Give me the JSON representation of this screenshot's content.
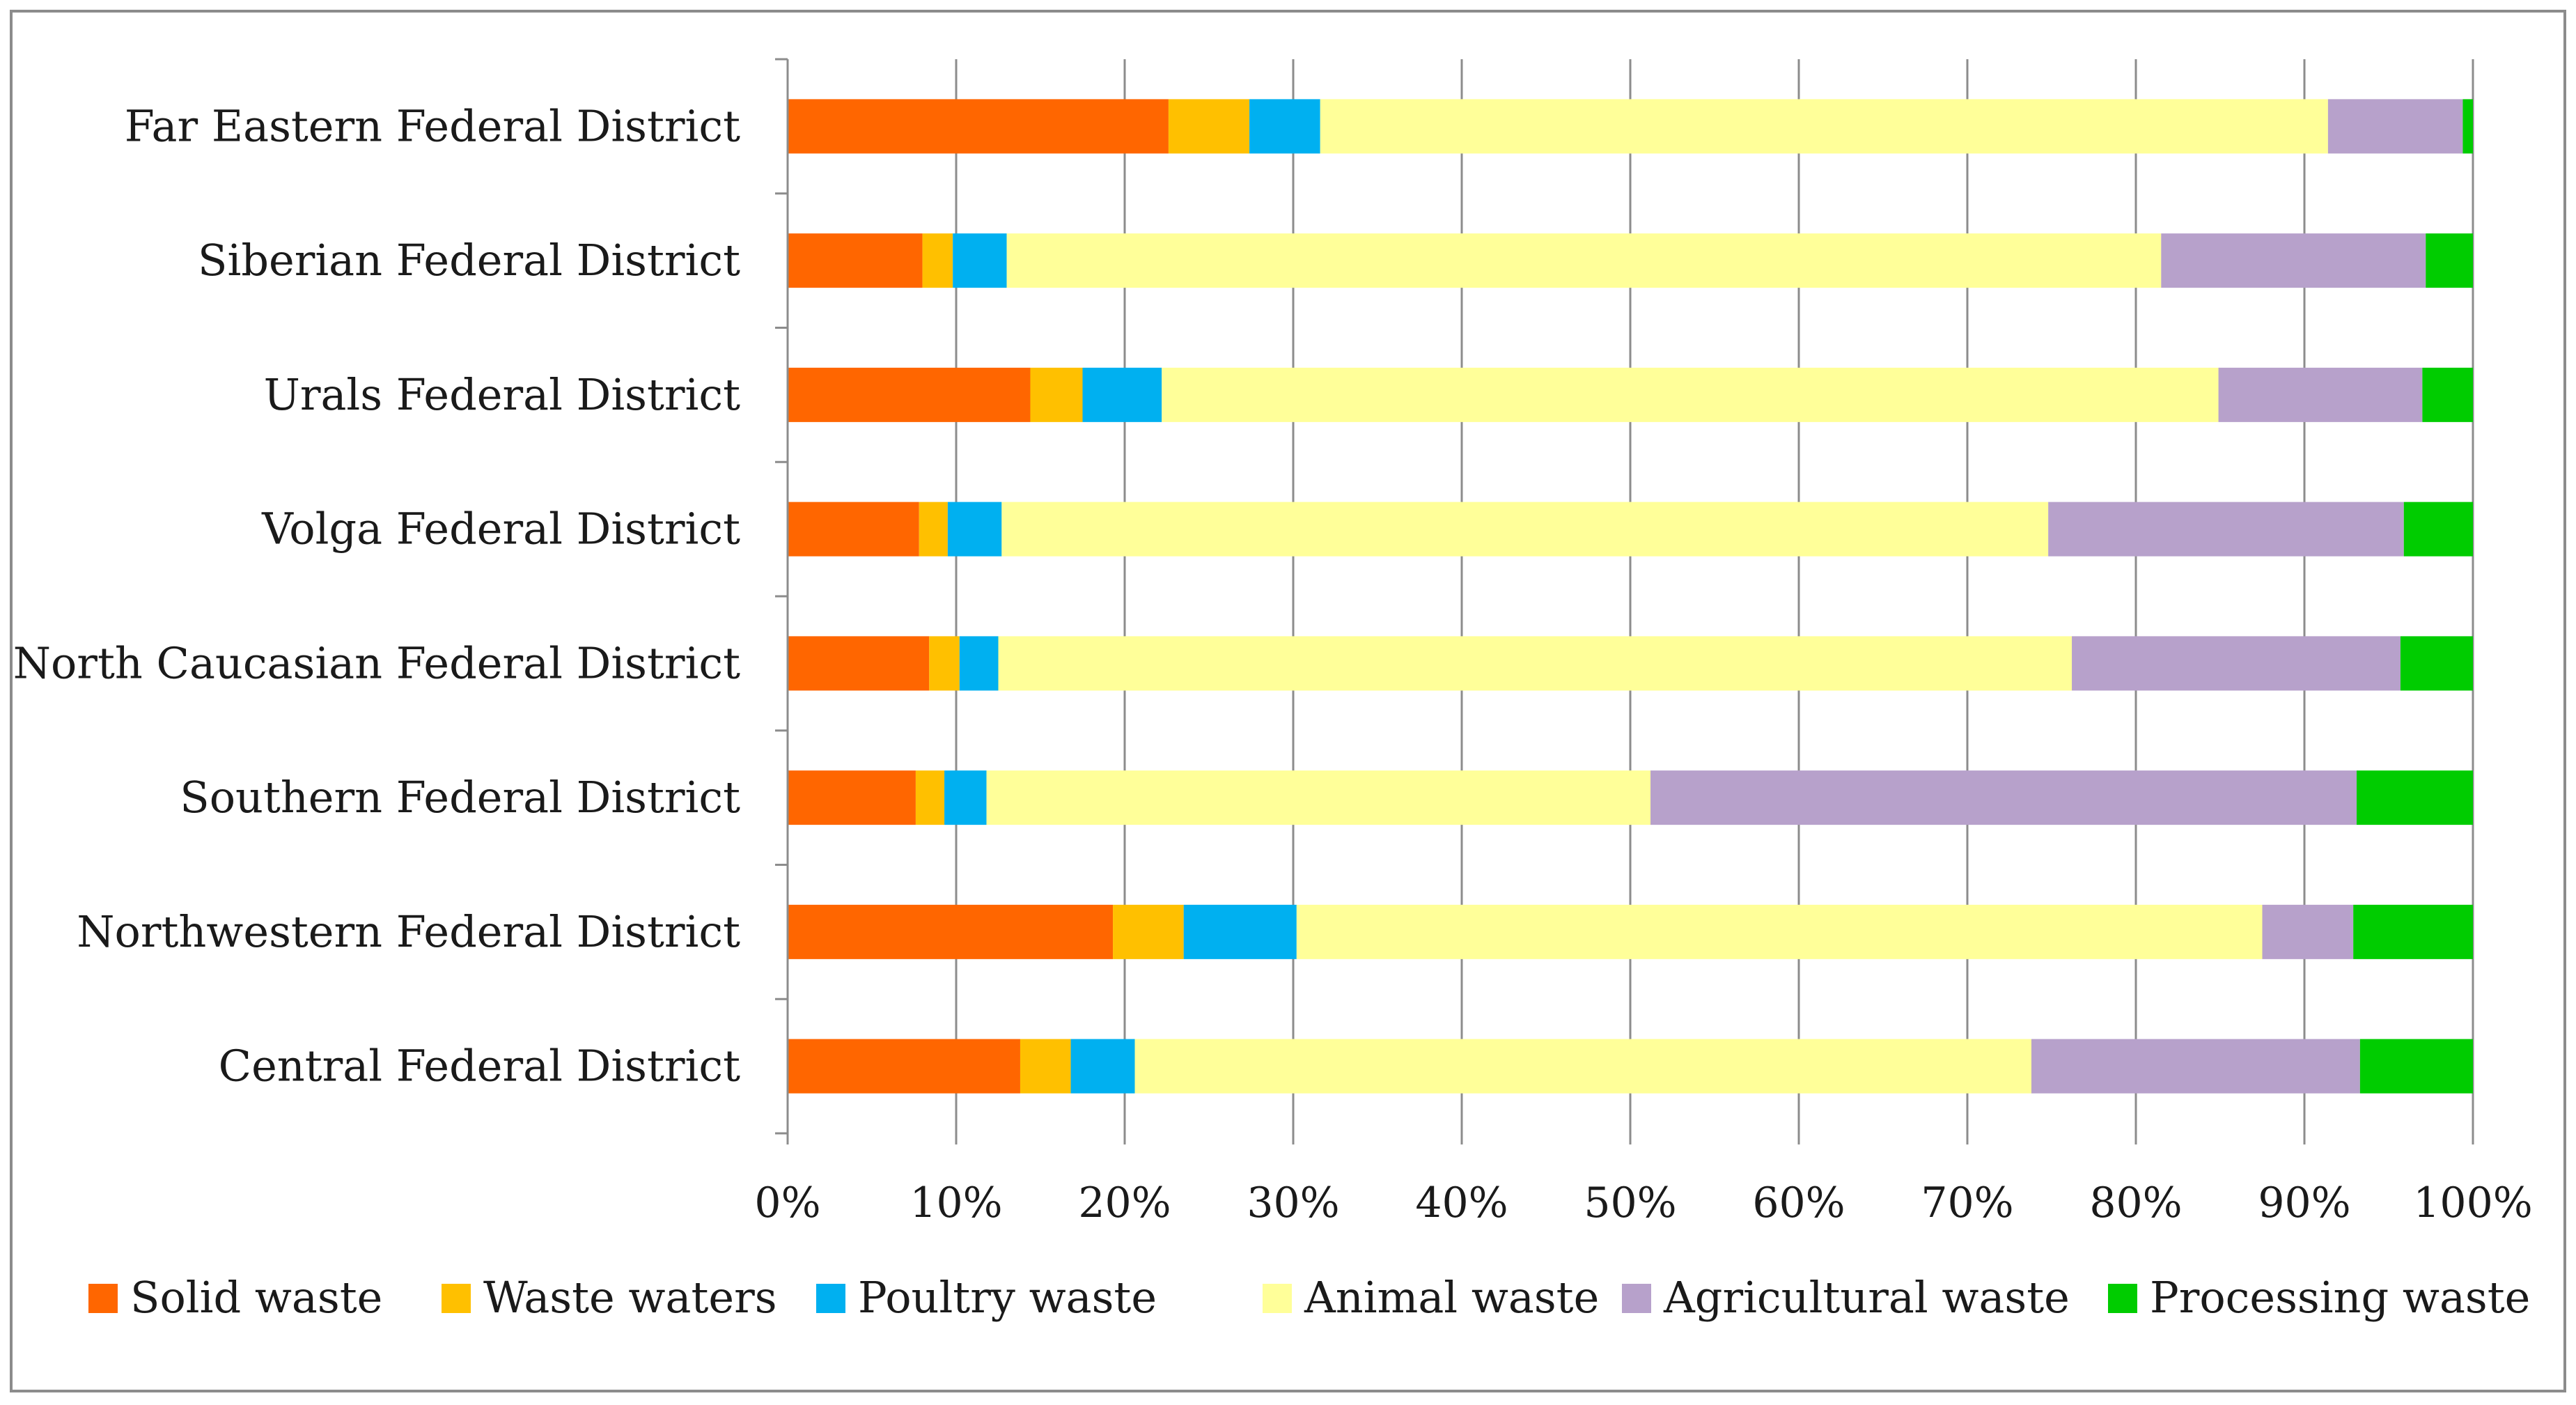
{
  "chart_data": {
    "type": "bar",
    "orientation": "horizontal",
    "stacked": "percent",
    "title": "",
    "xlabel": "",
    "ylabel": "",
    "xlim": [
      0,
      100
    ],
    "x_ticks": [
      "0%",
      "10%",
      "20%",
      "30%",
      "40%",
      "50%",
      "60%",
      "70%",
      "80%",
      "90%",
      "100%"
    ],
    "grid": "vertical",
    "legend_position": "bottom",
    "categories": [
      "Far Eastern Federal District",
      "Siberian Federal District",
      "Urals Federal District",
      "Volga Federal District",
      "North Caucasian Federal District",
      "Southern Federal District",
      "Northwestern Federal District",
      "Central Federal District"
    ],
    "series": [
      {
        "name": "Solid waste",
        "color": "#ff6600",
        "values": [
          22.6,
          8.0,
          14.4,
          7.8,
          8.4,
          7.6,
          19.3,
          13.8
        ]
      },
      {
        "name": "Waste waters",
        "color": "#ffc000",
        "values": [
          4.8,
          1.8,
          3.1,
          1.7,
          1.8,
          1.7,
          4.2,
          3.0
        ]
      },
      {
        "name": "Poultry waste",
        "color": "#00b0f0",
        "values": [
          4.2,
          3.2,
          4.7,
          3.2,
          2.3,
          2.5,
          6.7,
          3.8
        ]
      },
      {
        "name": "Animal waste",
        "color": "#ffff99",
        "values": [
          59.8,
          68.5,
          62.7,
          62.1,
          63.7,
          39.4,
          57.3,
          53.2
        ]
      },
      {
        "name": "Agricultural waste",
        "color": "#b7a1cb",
        "values": [
          8.0,
          15.7,
          12.1,
          21.1,
          19.5,
          41.9,
          5.4,
          19.5
        ]
      },
      {
        "name": "Processing waste",
        "color": "#00cc00",
        "values": [
          0.6,
          2.8,
          3.0,
          4.1,
          4.3,
          6.9,
          7.1,
          6.7
        ]
      }
    ]
  }
}
